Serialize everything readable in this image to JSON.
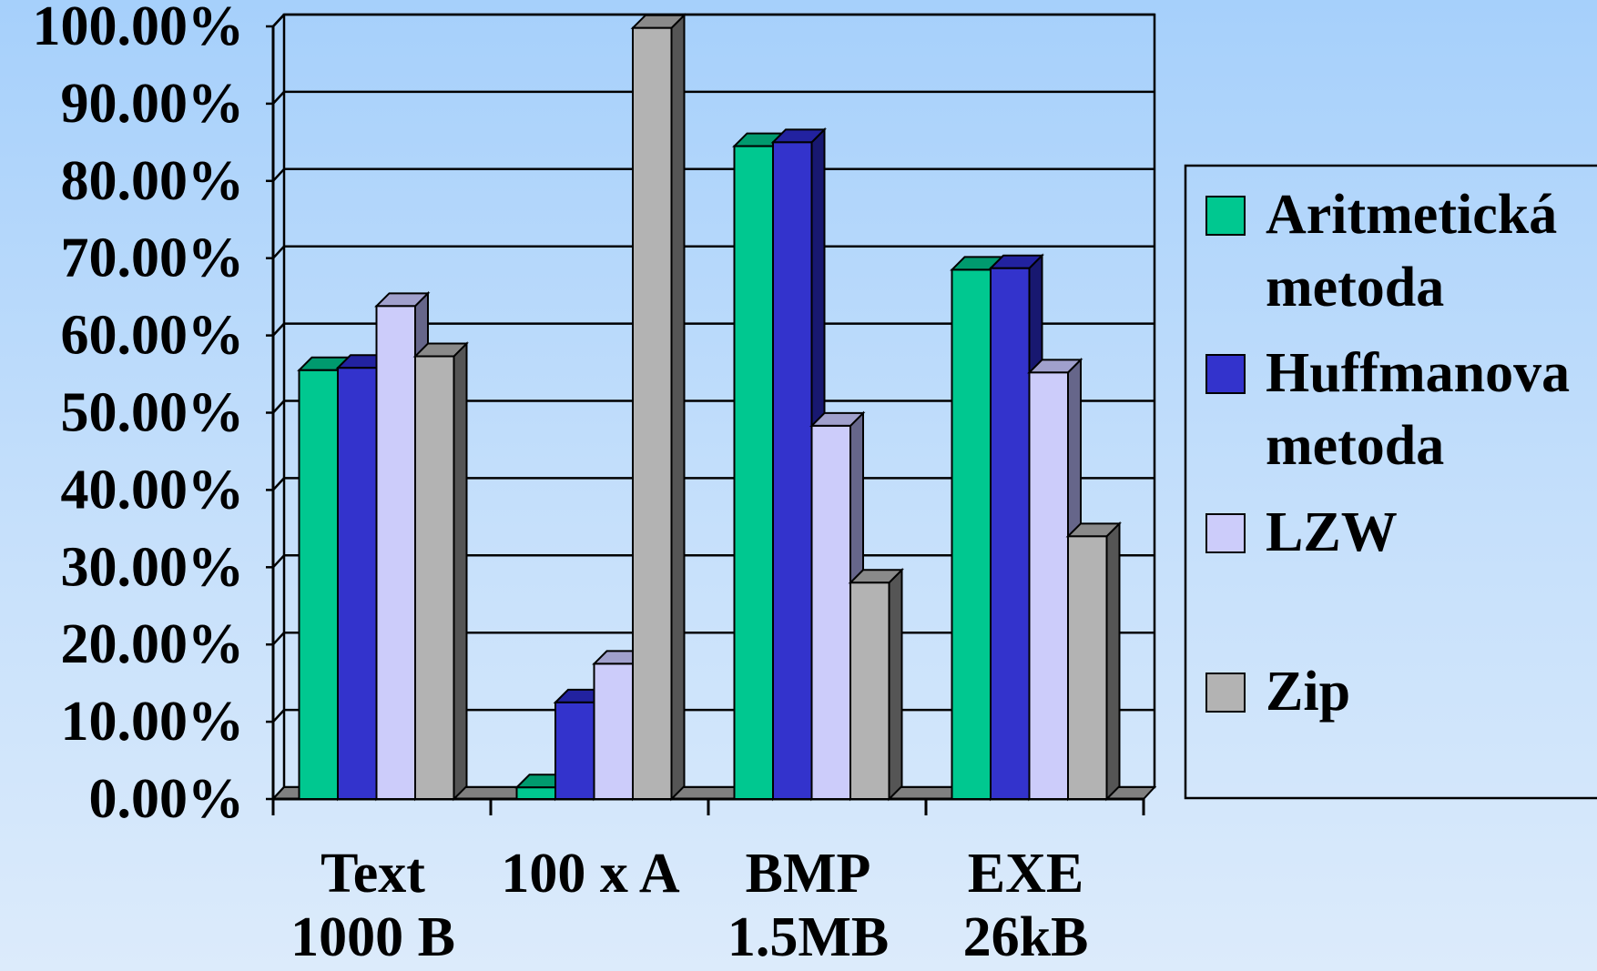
{
  "chart_data": {
    "type": "bar",
    "categories": [
      [
        "Text",
        "1000 B"
      ],
      [
        "100 x A"
      ],
      [
        "BMP",
        "1.5MB"
      ],
      [
        "EXE",
        "26kB"
      ]
    ],
    "y_ticks": [
      "0.00%",
      "10.00%",
      "20.00%",
      "30.00%",
      "40.00%",
      "50.00%",
      "60.00%",
      "70.00%",
      "80.00%",
      "90.00%",
      "100.00%"
    ],
    "ylim": [
      0,
      100
    ],
    "grid": true,
    "legend_position": "right",
    "series": [
      {
        "name": [
          "Aritmetická",
          "metoda"
        ],
        "color": "#00c890",
        "top": "#009a6e",
        "side": "#006e50",
        "values": [
          55.5,
          1.5,
          84.5,
          68.5
        ]
      },
      {
        "name": [
          "Huffmanova",
          "metoda"
        ],
        "color": "#3333cc",
        "top": "#2222a0",
        "side": "#181870",
        "values": [
          55.8,
          12.5,
          85.0,
          68.7
        ]
      },
      {
        "name": [
          "LZW"
        ],
        "color": "#ccccfa",
        "top": "#a0a0cc",
        "side": "#66668a",
        "values": [
          63.8,
          17.5,
          48.3,
          55.2
        ]
      },
      {
        "name": [
          "Zip"
        ],
        "color": "#b3b3b3",
        "top": "#8a8a8a",
        "side": "#555555",
        "values": [
          57.3,
          99.8,
          28.0,
          34.0
        ]
      }
    ]
  }
}
